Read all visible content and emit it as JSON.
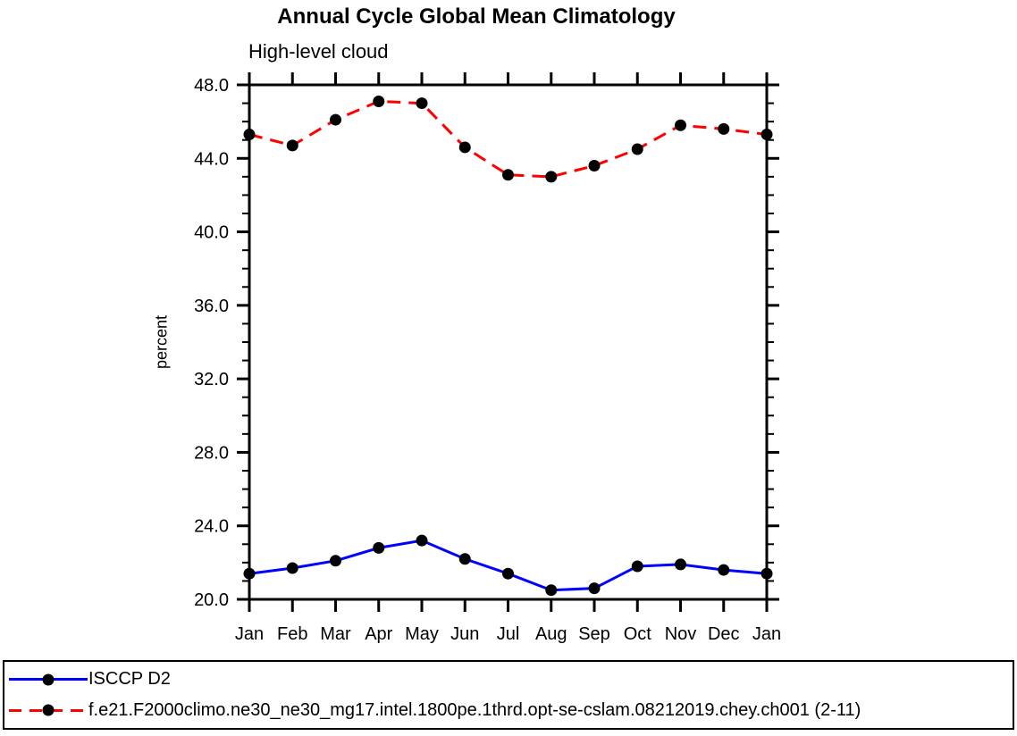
{
  "page": {
    "background": "#ffffff"
  },
  "chart_data": {
    "type": "line",
    "title": "Annual Cycle Global Mean Climatology",
    "subtitle": "High-level cloud",
    "ylabel": "percent",
    "xlabel": "",
    "categories": [
      "Jan",
      "Feb",
      "Mar",
      "Apr",
      "May",
      "Jun",
      "Jul",
      "Aug",
      "Sep",
      "Oct",
      "Nov",
      "Dec",
      "Jan"
    ],
    "ylim": [
      20.0,
      48.0
    ],
    "ytick_interval": 4.0,
    "ytick_minor_interval": 1.0,
    "ytick_labels": [
      "20.0",
      "24.0",
      "28.0",
      "32.0",
      "36.0",
      "40.0",
      "44.0",
      "48.0"
    ],
    "grid": false,
    "legend_position": "bottom",
    "axis_color": "#000000",
    "series": [
      {
        "name": "ISCCP D2",
        "color": "#0000ff",
        "line_style": "solid",
        "marker": "circle",
        "marker_color": "#000000",
        "values": [
          21.4,
          21.7,
          22.1,
          22.8,
          23.2,
          22.2,
          21.4,
          20.5,
          20.6,
          21.8,
          21.9,
          21.6,
          21.4
        ]
      },
      {
        "name": "f.e21.F2000climo.ne30_ne30_mg17.intel.1800pe.1thrd.opt-se-cslam.08212019.chey.ch001 (2-11)",
        "color": "#ff0000",
        "line_style": "dashed",
        "marker": "circle",
        "marker_color": "#000000",
        "values": [
          45.3,
          44.7,
          46.1,
          47.1,
          47.0,
          44.6,
          43.1,
          43.0,
          43.6,
          44.5,
          45.8,
          45.6,
          45.3
        ]
      }
    ]
  }
}
